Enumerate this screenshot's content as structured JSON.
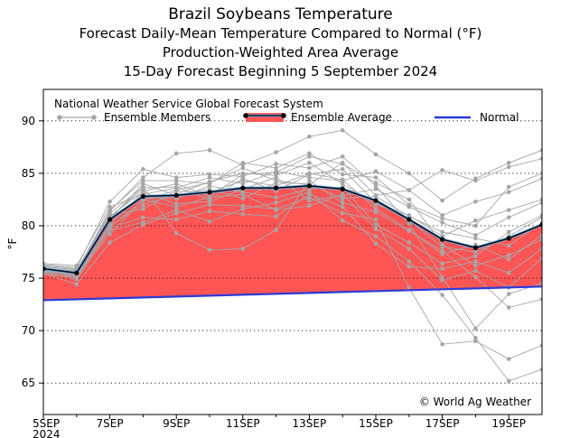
{
  "title": {
    "line1": "Brazil Soybeans Temperature",
    "line2": "Forecast Daily-Mean Temperature Compared to Normal (°F)",
    "line3": "Production-Weighted Area Average",
    "line4": "15-Day Forecast Beginning 5 September 2024"
  },
  "legend": {
    "header": "National Weather Service Global Forecast System",
    "members": "Ensemble Members",
    "average": "Ensemble Average",
    "normal": "Normal"
  },
  "credit": "© World Ag Weather",
  "chart_data": {
    "type": "line",
    "ylabel": "°F",
    "ylim": [
      62,
      93
    ],
    "yticks": [
      65,
      70,
      75,
      80,
      85,
      90
    ],
    "xlim": [
      0,
      15
    ],
    "xticks": [
      {
        "x": 0,
        "label": "5SEP",
        "sub": "2024"
      },
      {
        "x": 2,
        "label": "7SEP",
        "sub": ""
      },
      {
        "x": 4,
        "label": "9SEP",
        "sub": ""
      },
      {
        "x": 6,
        "label": "11SEP",
        "sub": ""
      },
      {
        "x": 8,
        "label": "13SEP",
        "sub": ""
      },
      {
        "x": 10,
        "label": "15SEP",
        "sub": ""
      },
      {
        "x": 12,
        "label": "17SEP",
        "sub": ""
      },
      {
        "x": 14,
        "label": "19SEP",
        "sub": ""
      }
    ],
    "grid": true,
    "colors": {
      "fill": "#ff5555",
      "average": "#000000",
      "members": "#a6a6a6",
      "normal": "#2b3bd6",
      "band": "#6fa7e6"
    },
    "series": [
      {
        "name": "Ensemble Average",
        "x": [
          0,
          1,
          2,
          3,
          4,
          5,
          6,
          7,
          8,
          9,
          10,
          11,
          12,
          13,
          14,
          15
        ],
        "values": [
          75.9,
          75.5,
          80.6,
          82.8,
          82.9,
          83.2,
          83.6,
          83.6,
          83.8,
          83.5,
          82.4,
          80.6,
          78.7,
          77.9,
          78.8,
          80.1
        ]
      },
      {
        "name": "Normal",
        "x": [
          0,
          15
        ],
        "values": [
          72.9,
          74.2
        ]
      }
    ],
    "members": [
      [
        76.0,
        75.7,
        81.4,
        84.6,
        86.9,
        87.2,
        85.8,
        87.0,
        88.5,
        89.1,
        86.8,
        85.0,
        82.4,
        84.5,
        86.0,
        87.2
      ],
      [
        75.8,
        75.2,
        80.0,
        82.0,
        83.0,
        84.2,
        85.0,
        84.8,
        86.0,
        84.0,
        82.0,
        81.0,
        79.0,
        80.5,
        81.5,
        82.5
      ],
      [
        76.3,
        76.0,
        82.3,
        85.4,
        84.6,
        84.9,
        84.7,
        85.9,
        85.5,
        86.6,
        83.8,
        80.2,
        75.1,
        70.2,
        73.5,
        74.5
      ],
      [
        75.6,
        74.9,
        79.6,
        80.3,
        81.5,
        80.4,
        81.6,
        82.2,
        83.2,
        80.5,
        79.0,
        76.6,
        73.4,
        69.3,
        65.2,
        66.3
      ],
      [
        75.7,
        75.4,
        80.9,
        83.3,
        84.0,
        82.8,
        84.9,
        85.1,
        86.6,
        85.9,
        84.1,
        82.5,
        78.2,
        76.2,
        77.2,
        78.7
      ],
      [
        76.0,
        75.6,
        81.2,
        83.7,
        79.3,
        77.7,
        77.8,
        79.6,
        84.3,
        82.2,
        81.3,
        79.5,
        77.6,
        75.1,
        72.2,
        73.0
      ],
      [
        75.9,
        75.0,
        79.9,
        82.4,
        83.4,
        84.1,
        85.5,
        84.3,
        83.9,
        86.0,
        82.9,
        83.4,
        85.3,
        84.3,
        85.6,
        86.4
      ],
      [
        75.5,
        74.4,
        78.4,
        80.1,
        81.2,
        82.0,
        81.9,
        81.6,
        82.7,
        81.2,
        80.6,
        74.1,
        68.7,
        69.0,
        67.3,
        68.6
      ],
      [
        76.4,
        76.2,
        81.8,
        83.0,
        83.6,
        84.6,
        84.0,
        85.2,
        84.6,
        84.3,
        85.2,
        83.4,
        81.0,
        82.3,
        83.2,
        84.5
      ],
      [
        76.1,
        75.8,
        80.5,
        82.7,
        82.6,
        83.8,
        83.2,
        82.7,
        83.5,
        83.7,
        80.1,
        78.4,
        76.4,
        77.1,
        79.4,
        81.0
      ],
      [
        75.4,
        75.1,
        80.1,
        83.2,
        82.1,
        82.3,
        83.5,
        84.6,
        82.4,
        82.9,
        83.5,
        81.8,
        80.3,
        79.1,
        80.8,
        82.2
      ],
      [
        75.8,
        75.5,
        81.0,
        81.6,
        83.3,
        83.2,
        84.3,
        83.8,
        85.0,
        84.4,
        81.6,
        79.6,
        77.3,
        78.2,
        76.8,
        79.1
      ],
      [
        76.2,
        75.9,
        80.6,
        84.0,
        82.9,
        83.5,
        82.6,
        84.1,
        84.0,
        82.6,
        82.8,
        80.9,
        79.4,
        78.8,
        78.1,
        80.3
      ],
      [
        75.6,
        75.3,
        79.2,
        82.5,
        81.8,
        82.7,
        83.0,
        81.5,
        81.9,
        83.0,
        79.7,
        77.8,
        74.8,
        75.7,
        74.1,
        76.9
      ],
      [
        76.0,
        75.6,
        81.5,
        84.3,
        84.3,
        84.0,
        86.0,
        85.5,
        86.9,
        84.9,
        84.6,
        82.0,
        80.7,
        80.0,
        83.7,
        85.0
      ],
      [
        75.7,
        75.2,
        79.8,
        80.8,
        80.6,
        81.4,
        81.1,
        80.9,
        83.0,
        81.8,
        78.3,
        76.1,
        75.9,
        76.6,
        75.5,
        77.8
      ],
      [
        75.9,
        75.7,
        80.8,
        83.6,
        83.7,
        82.5,
        84.5,
        83.3,
        84.9,
        85.4,
        82.2,
        80.5,
        78.0,
        77.5,
        79.0,
        80.8
      ]
    ]
  }
}
